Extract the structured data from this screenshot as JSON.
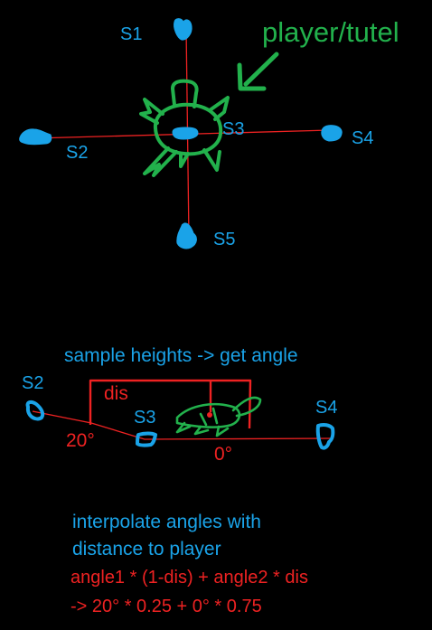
{
  "top": {
    "s1": "S1",
    "s2": "S2",
    "s3": "S3",
    "s4": "S4",
    "s5": "S5",
    "player": "player/tutel"
  },
  "side": {
    "title": "sample heights -> get angle",
    "dis": "dis",
    "s2": "S2",
    "s3": "S3",
    "s4": "S4",
    "angle_left": "20°",
    "angle_right": "0°"
  },
  "notes": {
    "line1": "interpolate angles with",
    "line2": "distance to player",
    "formula1": "angle1 * (1-dis) + angle2 * dis",
    "formula2": "-> 20° * 0.25 + 0° * 0.75"
  },
  "colors": {
    "background": "#000000",
    "sample_blue": "#1aa3e8",
    "turtle_green": "#22b14c",
    "annotation_red": "#ee2222"
  }
}
